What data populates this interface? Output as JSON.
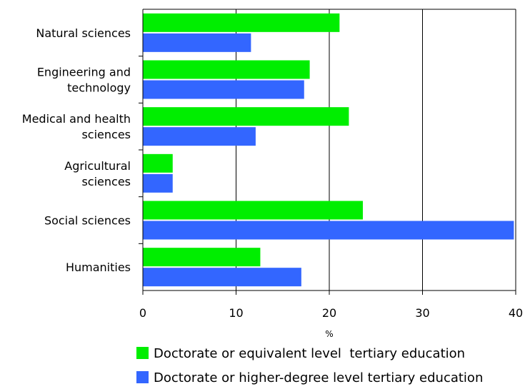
{
  "chart_data": {
    "type": "bar",
    "orientation": "horizontal",
    "categories": [
      [
        "Natural sciences"
      ],
      [
        "Engineering and",
        "technology"
      ],
      [
        "Medical and health",
        "sciences"
      ],
      [
        "Agricultural",
        "sciences"
      ],
      [
        "Social sciences"
      ],
      [
        "Humanities"
      ]
    ],
    "series": [
      {
        "name": "Doctorate or equivalent level  tertiary education",
        "color": "#00ee00",
        "values": [
          21.1,
          17.9,
          22.1,
          3.2,
          23.6,
          12.6
        ]
      },
      {
        "name": "Doctorate or higher-degree level tertiary education",
        "color": "#3366ff",
        "values": [
          11.6,
          17.3,
          12.1,
          3.2,
          39.8,
          17.0
        ]
      }
    ],
    "xlim": [
      0,
      40
    ],
    "xticks": [
      "0",
      "10",
      "20",
      "30",
      "40"
    ],
    "xlabel": "%",
    "grid": "vertical",
    "legend_position": "bottom"
  }
}
